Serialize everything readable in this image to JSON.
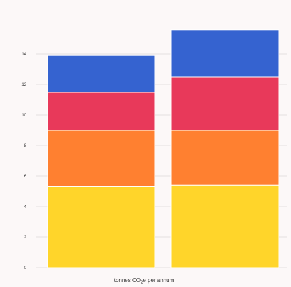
{
  "chart_data": {
    "type": "bar",
    "stacked": true,
    "categories": [
      "",
      ""
    ],
    "series": [
      {
        "color": "#FFD52A",
        "values": [
          5.3,
          5.4
        ]
      },
      {
        "color": "#FF8030",
        "values": [
          3.7,
          3.6
        ]
      },
      {
        "color": "#E8395A",
        "values": [
          2.5,
          3.5
        ]
      },
      {
        "color": "#3563D0",
        "values": [
          2.4,
          3.1
        ]
      }
    ],
    "xlabel_parts": [
      "tonnes CO",
      "2",
      "e per annum"
    ],
    "ylabel": "",
    "ylim": [
      0,
      16
    ],
    "yticks": [
      0,
      2,
      4,
      6,
      8,
      10,
      12,
      14
    ],
    "grid": true,
    "background": "#FCF8F8",
    "gridline_color": "#E4E0E0"
  }
}
